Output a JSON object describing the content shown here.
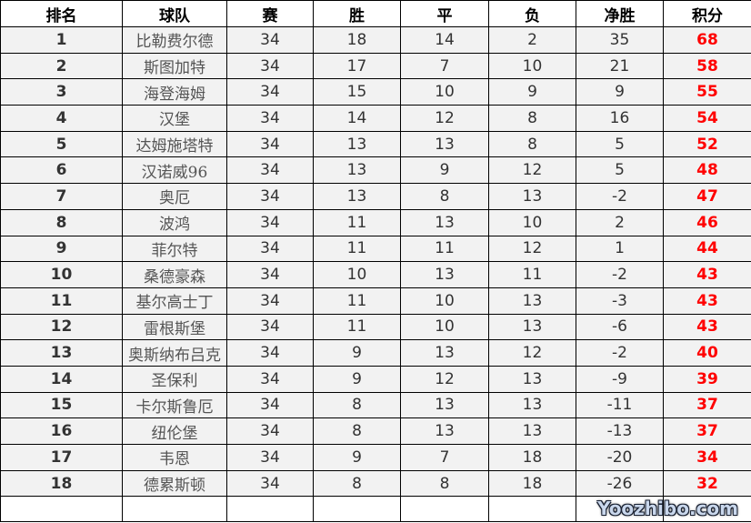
{
  "headers": [
    "排名",
    "球队",
    "赛",
    "胜",
    "平",
    "负",
    "净胜",
    "积分"
  ],
  "rows": [
    [
      "1",
      "比勒费尔德",
      "34",
      "18",
      "14",
      "2",
      "35",
      "68"
    ],
    [
      "2",
      "斯图加特",
      "34",
      "17",
      "7",
      "10",
      "21",
      "58"
    ],
    [
      "3",
      "海登海姆",
      "34",
      "15",
      "10",
      "9",
      "9",
      "55"
    ],
    [
      "4",
      "汉堡",
      "34",
      "14",
      "12",
      "8",
      "16",
      "54"
    ],
    [
      "5",
      "达姆施塔特",
      "34",
      "13",
      "13",
      "8",
      "5",
      "52"
    ],
    [
      "6",
      "汉诺威96",
      "34",
      "13",
      "9",
      "12",
      "5",
      "48"
    ],
    [
      "7",
      "奥厄",
      "34",
      "13",
      "8",
      "13",
      "-2",
      "47"
    ],
    [
      "8",
      "波鸿",
      "34",
      "11",
      "13",
      "10",
      "2",
      "46"
    ],
    [
      "9",
      "菲尔特",
      "34",
      "11",
      "11",
      "12",
      "1",
      "44"
    ],
    [
      "10",
      "桑德豪森",
      "34",
      "10",
      "13",
      "11",
      "-2",
      "43"
    ],
    [
      "11",
      "基尔高士丁",
      "34",
      "11",
      "10",
      "13",
      "-3",
      "43"
    ],
    [
      "12",
      "雷根斯堡",
      "34",
      "11",
      "10",
      "13",
      "-6",
      "43"
    ],
    [
      "13",
      "奥斯纳布吕克",
      "34",
      "9",
      "13",
      "12",
      "-2",
      "40"
    ],
    [
      "14",
      "圣保利",
      "34",
      "9",
      "12",
      "13",
      "-9",
      "39"
    ],
    [
      "15",
      "卡尔斯鲁厄",
      "34",
      "8",
      "13",
      "13",
      "-11",
      "37"
    ],
    [
      "16",
      "纽伦堡",
      "34",
      "8",
      "13",
      "13",
      "-13",
      "37"
    ],
    [
      "17",
      "韦恩",
      "34",
      "9",
      "7",
      "18",
      "-20",
      "34"
    ],
    [
      "18",
      "德累斯顿",
      "34",
      "8",
      "8",
      "18",
      "-26",
      "32"
    ]
  ],
  "watermark": "Yoozhibo.com",
  "colors": {
    "points": "#ff0000",
    "row_bg": "#f2f2f2"
  }
}
